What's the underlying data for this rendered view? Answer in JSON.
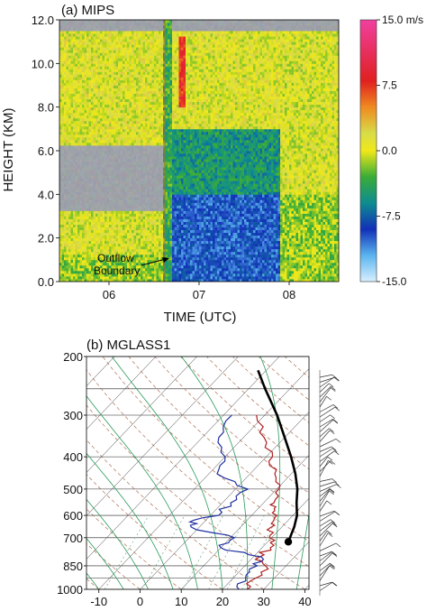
{
  "chart_data": [
    {
      "type": "heatmap",
      "title": "(a) MIPS",
      "xlabel": "TIME (UTC)",
      "ylabel": "HEIGHT (KM)",
      "xlim": [
        5.45,
        8.55
      ],
      "ylim": [
        0,
        12
      ],
      "x_ticks": [
        {
          "value": 6,
          "label": "06"
        },
        {
          "value": 7,
          "label": "07"
        },
        {
          "value": 8,
          "label": "08"
        }
      ],
      "y_ticks": [
        {
          "value": 0,
          "label": "0.0"
        },
        {
          "value": 2,
          "label": "2.0"
        },
        {
          "value": 4,
          "label": "4.0"
        },
        {
          "value": 6,
          "label": "6.0"
        },
        {
          "value": 8,
          "label": "8.0"
        },
        {
          "value": 10,
          "label": "10.0"
        },
        {
          "value": 12,
          "label": "12.0"
        }
      ],
      "colorbar": {
        "min": -15,
        "max": 15,
        "unit": "m/s",
        "ticks": [
          {
            "value": 15,
            "label": "15.0 m/s"
          },
          {
            "value": 7.5,
            "label": "7.5"
          },
          {
            "value": 0,
            "label": "0.0"
          },
          {
            "value": -7.5,
            "label": "-7.5"
          },
          {
            "value": -15,
            "label": "-15.0"
          }
        ],
        "stops": [
          {
            "value": -15,
            "color": "#d8f0ff"
          },
          {
            "value": -12,
            "color": "#5ab4ee"
          },
          {
            "value": -9,
            "color": "#1230b8"
          },
          {
            "value": -6,
            "color": "#0e8c90"
          },
          {
            "value": -3,
            "color": "#3aac38"
          },
          {
            "value": 0,
            "color": "#f0e818"
          },
          {
            "value": 2,
            "color": "#d8dc48"
          },
          {
            "value": 5,
            "color": "#f08a20"
          },
          {
            "value": 8,
            "color": "#e02020"
          },
          {
            "value": 15,
            "color": "#f040a0"
          }
        ]
      },
      "no_data_color": "#9ea2a8",
      "annotation": {
        "text": "Outflow Boundary",
        "line1": "Outflow",
        "line2": "Boundary",
        "time": 6.62,
        "height": 1.0
      },
      "regions": [
        {
          "time_start": 5.45,
          "time_end": 6.6,
          "height_bottom": 0.0,
          "height_top": 1.3,
          "velocity": -1.5
        },
        {
          "time_start": 5.45,
          "time_end": 6.6,
          "height_bottom": 1.3,
          "height_top": 3.2,
          "velocity": 0.3
        },
        {
          "time_start": 5.45,
          "time_end": 6.6,
          "height_bottom": 3.2,
          "height_top": 6.3,
          "velocity": null
        },
        {
          "time_start": 5.45,
          "time_end": 6.6,
          "height_bottom": 6.3,
          "height_top": 11.5,
          "velocity": 0.5
        },
        {
          "time_start": 6.6,
          "time_end": 6.7,
          "height_bottom": 0.0,
          "height_top": 12.0,
          "velocity": -3.5
        },
        {
          "time_start": 6.7,
          "time_end": 7.9,
          "height_bottom": 0.0,
          "height_top": 4.0,
          "velocity": -9.5
        },
        {
          "time_start": 6.7,
          "time_end": 7.9,
          "height_bottom": 4.0,
          "height_top": 7.0,
          "velocity": -5.0
        },
        {
          "time_start": 6.7,
          "time_end": 7.9,
          "height_bottom": 7.0,
          "height_top": 11.5,
          "velocity": 0.5
        },
        {
          "time_start": 6.78,
          "time_end": 6.86,
          "height_bottom": 8.0,
          "height_top": 11.2,
          "velocity": 8.0
        },
        {
          "time_start": 7.9,
          "time_end": 8.55,
          "height_bottom": 0.0,
          "height_top": 4.0,
          "velocity": -1.5
        },
        {
          "time_start": 7.9,
          "time_end": 8.55,
          "height_bottom": 4.0,
          "height_top": 11.5,
          "velocity": 0.3
        }
      ]
    },
    {
      "type": "line",
      "title": "(b) MGLASS1",
      "diagram": "skew-T",
      "x_ticks": [
        -10,
        0,
        10,
        20,
        30,
        40
      ],
      "xlim": [
        -13,
        41
      ],
      "pressure_ticks": [
        200,
        300,
        400,
        500,
        600,
        700,
        850,
        1000
      ],
      "pressure_lines": [
        200,
        250,
        300,
        400,
        500,
        600,
        700,
        850,
        925,
        1000
      ],
      "skew_t_per_decade": 77,
      "series": [
        {
          "color": "#b02020",
          "points": [
            [
              1000,
              26
            ],
            [
              925,
              25.5
            ],
            [
              850,
              25
            ],
            [
              800,
              21.5
            ],
            [
              750,
              22
            ],
            [
              700,
              19.5
            ],
            [
              650,
              17.5
            ],
            [
              620,
              16.5
            ],
            [
              580,
              14.5
            ],
            [
              550,
              12.5
            ],
            [
              500,
              10.5
            ],
            [
              450,
              6
            ],
            [
              400,
              1.5
            ],
            [
              350,
              -5
            ],
            [
              300,
              -12
            ]
          ]
        },
        {
          "color": "#2030a0",
          "points": [
            [
              1000,
              24
            ],
            [
              925,
              23
            ],
            [
              850,
              23
            ],
            [
              800,
              22
            ],
            [
              750,
              10
            ],
            [
              700,
              11
            ],
            [
              650,
              -2
            ],
            [
              620,
              -3
            ],
            [
              600,
              2
            ],
            [
              550,
              2
            ],
            [
              500,
              3
            ],
            [
              450,
              -8
            ],
            [
              400,
              -10
            ],
            [
              350,
              -16
            ],
            [
              300,
              -18
            ]
          ]
        },
        {
          "color": "#000000",
          "points": [
            [
              720,
              25
            ],
            [
              650,
              23
            ],
            [
              600,
              21
            ],
            [
              550,
              18
            ],
            [
              500,
              15
            ],
            [
              450,
              11
            ],
            [
              400,
              6
            ],
            [
              350,
              0
            ],
            [
              300,
              -7
            ],
            [
              250,
              -16
            ],
            [
              220,
              -22
            ]
          ]
        }
      ],
      "parcel_origin": {
        "pressure": 720,
        "temperature": 25
      }
    }
  ]
}
